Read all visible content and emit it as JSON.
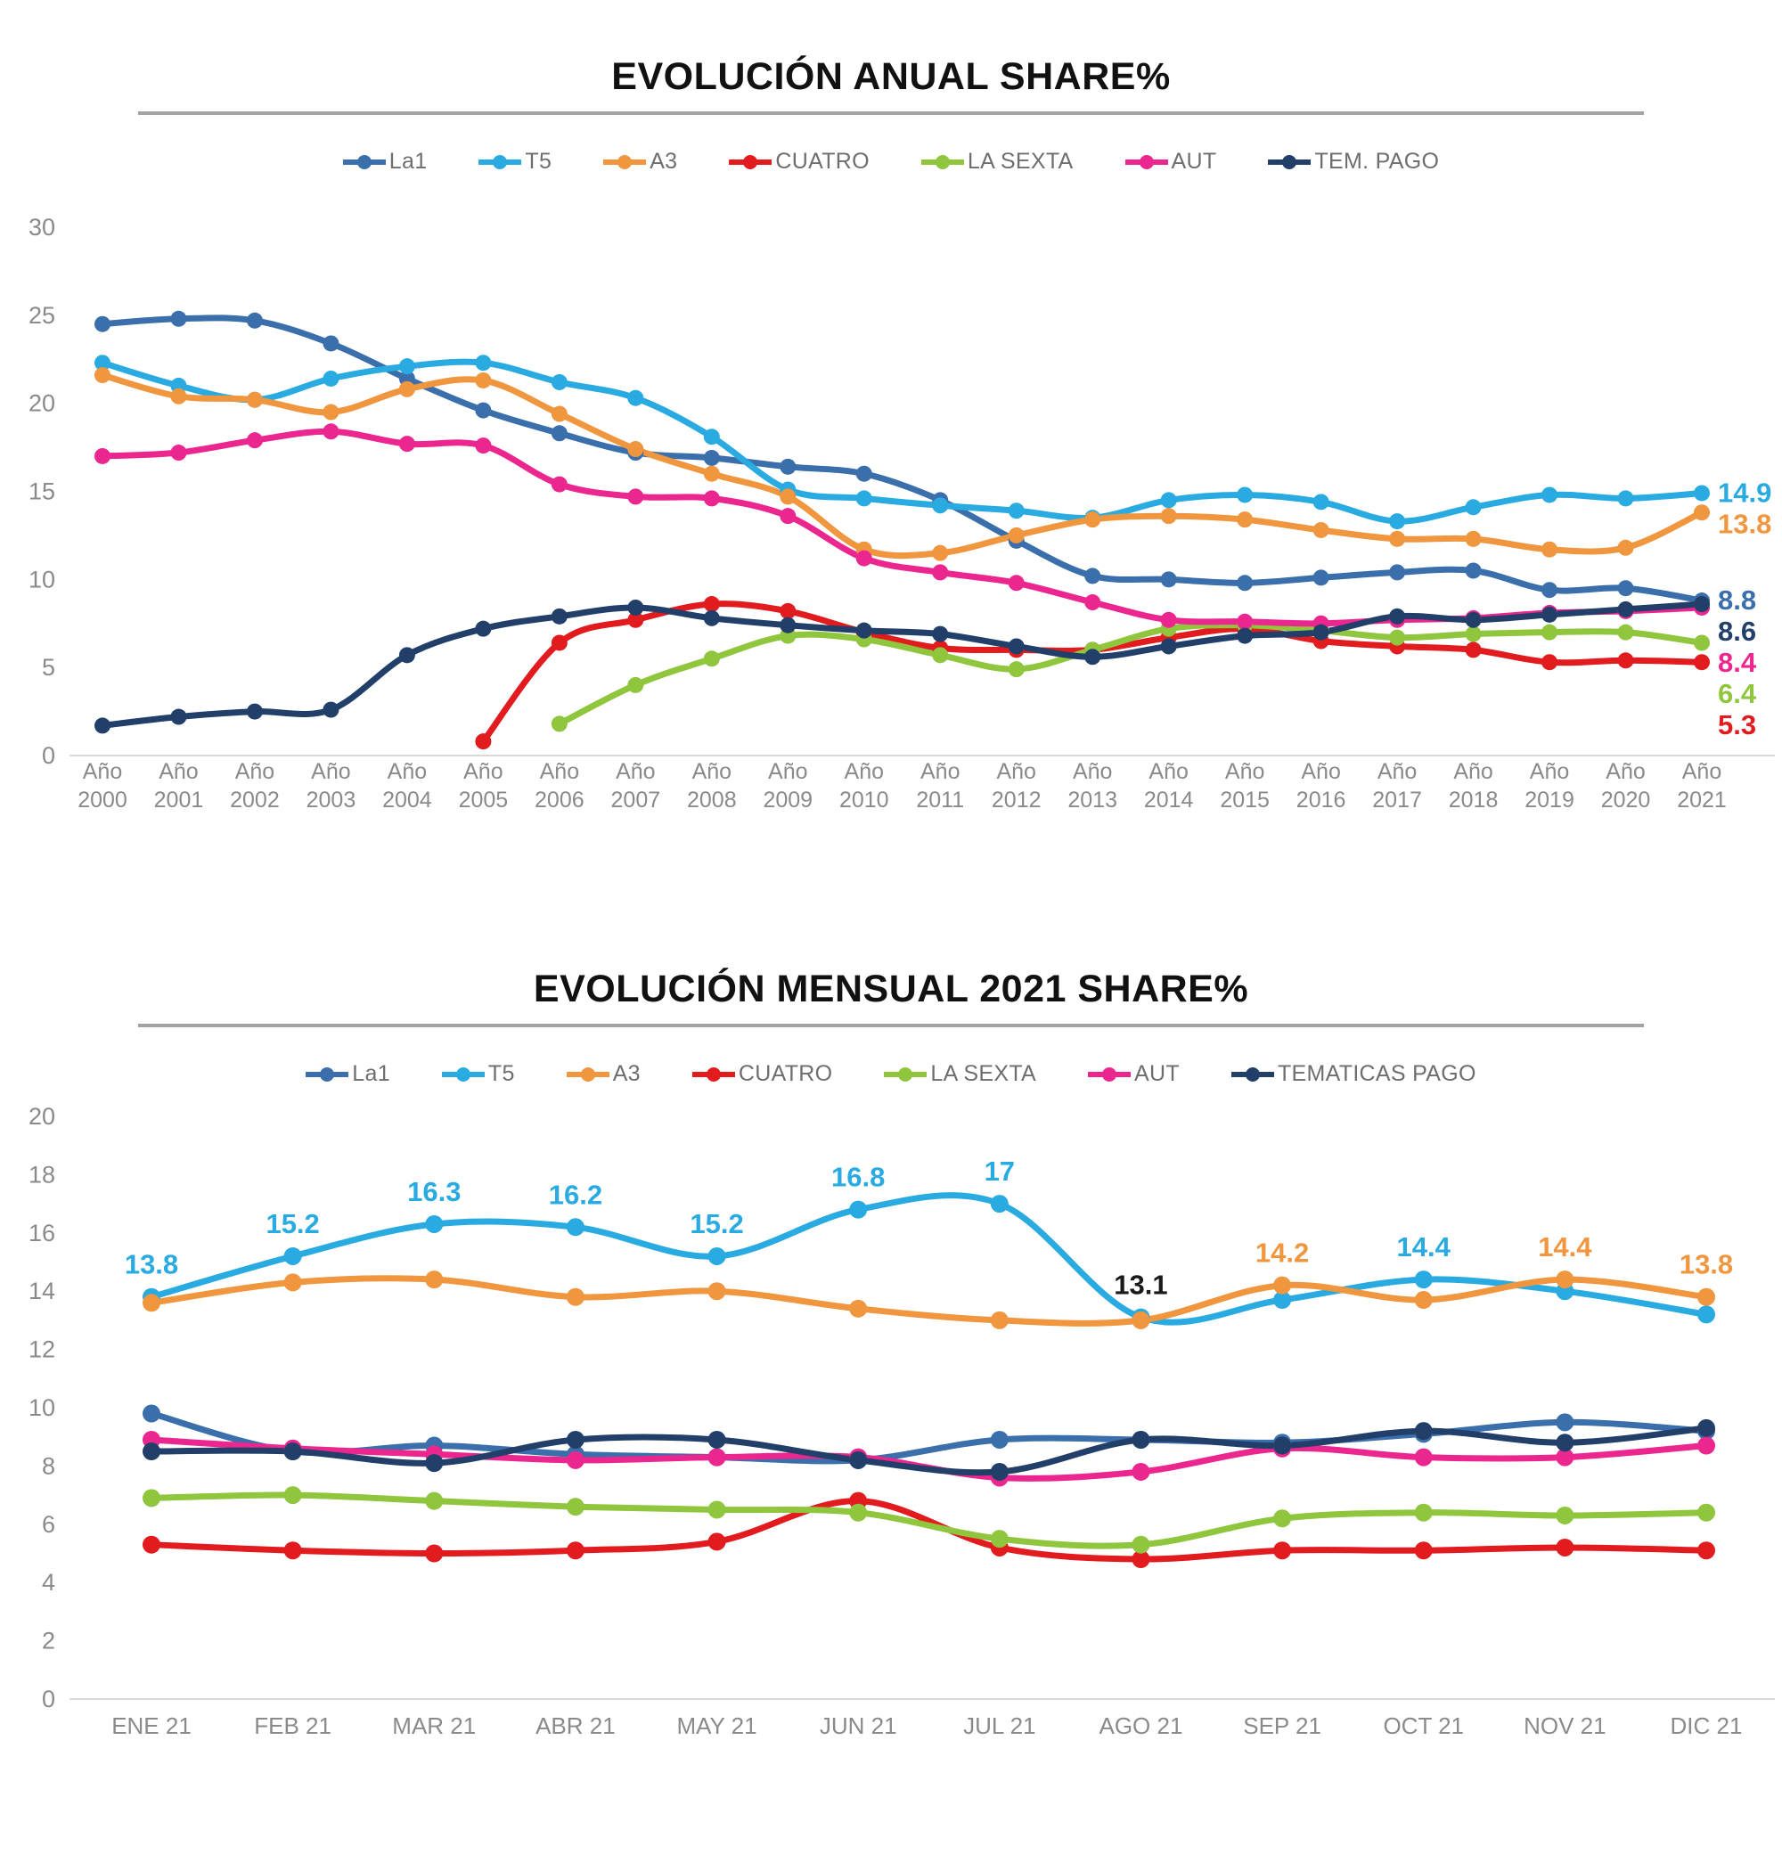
{
  "chart_data": [
    {
      "type": "line",
      "title": "EVOLUCIÓN ANUAL SHARE%",
      "x_prefix": "Año",
      "categories": [
        "2000",
        "2001",
        "2002",
        "2003",
        "2004",
        "2005",
        "2006",
        "2007",
        "2008",
        "2009",
        "2010",
        "2011",
        "2012",
        "2013",
        "2014",
        "2015",
        "2016",
        "2017",
        "2018",
        "2019",
        "2020",
        "2021"
      ],
      "y_axis": {
        "ticks": [
          0,
          5,
          10,
          15,
          20,
          25,
          30
        ],
        "min": 0,
        "max": 30
      },
      "grid": false,
      "legend_position": "top",
      "series": [
        {
          "name": "La1",
          "color": "#3A6FAC",
          "end_label": "8.8",
          "values": [
            24.5,
            24.8,
            24.7,
            23.4,
            21.4,
            19.6,
            18.3,
            17.2,
            16.9,
            16.4,
            16.0,
            14.5,
            12.2,
            10.2,
            10.0,
            9.8,
            10.1,
            10.4,
            10.5,
            9.4,
            9.5,
            8.8
          ]
        },
        {
          "name": "T5",
          "color": "#29ABE2",
          "end_label": "14.9",
          "values": [
            22.3,
            21.0,
            20.2,
            21.4,
            22.1,
            22.3,
            21.2,
            20.3,
            18.1,
            15.1,
            14.6,
            14.2,
            13.9,
            13.5,
            14.5,
            14.8,
            14.4,
            13.3,
            14.1,
            14.8,
            14.6,
            14.9
          ]
        },
        {
          "name": "A3",
          "color": "#F0963F",
          "end_label": "13.8",
          "values": [
            21.6,
            20.4,
            20.2,
            19.5,
            20.8,
            21.3,
            19.4,
            17.4,
            16.0,
            14.7,
            11.7,
            11.5,
            12.5,
            13.4,
            13.6,
            13.4,
            12.8,
            12.3,
            12.3,
            11.7,
            11.8,
            13.8
          ]
        },
        {
          "name": "CUATRO",
          "color": "#E21B1F",
          "end_label": "5.3",
          "values": [
            null,
            null,
            null,
            null,
            null,
            0.8,
            6.4,
            7.7,
            8.6,
            8.2,
            7.0,
            6.1,
            6.0,
            6.0,
            6.7,
            7.2,
            6.5,
            6.2,
            6.0,
            5.3,
            5.4,
            5.3
          ]
        },
        {
          "name": "LA SEXTA",
          "color": "#8FC63D",
          "end_label": "6.4",
          "values": [
            null,
            null,
            null,
            null,
            null,
            null,
            1.8,
            4.0,
            5.5,
            6.8,
            6.6,
            5.7,
            4.9,
            6.0,
            7.2,
            7.4,
            7.1,
            6.7,
            6.9,
            7.0,
            7.0,
            6.4
          ]
        },
        {
          "name": "AUT",
          "color": "#EC268F",
          "end_label": "8.4",
          "values": [
            17.0,
            17.2,
            17.9,
            18.4,
            17.7,
            17.6,
            15.4,
            14.7,
            14.6,
            13.6,
            11.2,
            10.4,
            9.8,
            8.7,
            7.7,
            7.6,
            7.5,
            7.7,
            7.8,
            8.1,
            8.2,
            8.4
          ]
        },
        {
          "name": "TEM. PAGO",
          "color": "#223F6A",
          "end_label": "8.6",
          "values": [
            1.7,
            2.2,
            2.5,
            2.6,
            5.7,
            7.2,
            7.9,
            8.4,
            7.8,
            7.4,
            7.1,
            6.9,
            6.2,
            5.6,
            6.2,
            6.8,
            7.0,
            7.9,
            7.7,
            8.0,
            8.3,
            8.6
          ]
        }
      ],
      "point_labels": []
    },
    {
      "type": "line",
      "title": "EVOLUCIÓN MENSUAL 2021 SHARE%",
      "x_prefix": "",
      "categories": [
        "ENE 21",
        "FEB 21",
        "MAR 21",
        "ABR 21",
        "MAY 21",
        "JUN 21",
        "JUL 21",
        "AGO 21",
        "SEP 21",
        "OCT 21",
        "NOV 21",
        "DIC 21"
      ],
      "y_axis": {
        "ticks": [
          0,
          2,
          4,
          6,
          8,
          10,
          12,
          14,
          16,
          18,
          20
        ],
        "min": 0,
        "max": 20
      },
      "grid": false,
      "legend_position": "top",
      "series": [
        {
          "name": "La1",
          "color": "#3A6FAC",
          "end_label": "",
          "values": [
            9.8,
            8.5,
            8.7,
            8.4,
            8.3,
            8.2,
            8.9,
            8.9,
            8.8,
            9.1,
            9.5,
            9.2
          ]
        },
        {
          "name": "T5",
          "color": "#29ABE2",
          "end_label": "",
          "values": [
            13.8,
            15.2,
            16.3,
            16.2,
            15.2,
            16.8,
            17,
            13.1,
            13.7,
            14.4,
            14.0,
            13.2
          ]
        },
        {
          "name": "A3",
          "color": "#F0963F",
          "end_label": "",
          "values": [
            13.6,
            14.3,
            14.4,
            13.8,
            14.0,
            13.4,
            13.0,
            13.0,
            14.2,
            13.7,
            14.4,
            13.8
          ]
        },
        {
          "name": "CUATRO",
          "color": "#E21B1F",
          "end_label": "",
          "values": [
            5.3,
            5.1,
            5.0,
            5.1,
            5.4,
            6.8,
            5.2,
            4.8,
            5.1,
            5.1,
            5.2,
            5.1
          ]
        },
        {
          "name": "LA SEXTA",
          "color": "#8FC63D",
          "end_label": "",
          "values": [
            6.9,
            7.0,
            6.8,
            6.6,
            6.5,
            6.4,
            5.5,
            5.3,
            6.2,
            6.4,
            6.3,
            6.4
          ]
        },
        {
          "name": "AUT",
          "color": "#EC268F",
          "end_label": "",
          "values": [
            8.9,
            8.6,
            8.4,
            8.2,
            8.3,
            8.3,
            7.6,
            7.8,
            8.6,
            8.3,
            8.3,
            8.7
          ]
        },
        {
          "name": "TEMATICAS PAGO",
          "color": "#223F6A",
          "end_label": "",
          "values": [
            8.5,
            8.5,
            8.1,
            8.9,
            8.9,
            8.2,
            7.8,
            8.9,
            8.7,
            9.2,
            8.8,
            9.3
          ]
        }
      ],
      "point_labels": [
        {
          "series": "T5",
          "index": 0,
          "text": "13.8"
        },
        {
          "series": "T5",
          "index": 1,
          "text": "15.2"
        },
        {
          "series": "T5",
          "index": 2,
          "text": "16.3"
        },
        {
          "series": "T5",
          "index": 3,
          "text": "16.2"
        },
        {
          "series": "T5",
          "index": 4,
          "text": "15.2"
        },
        {
          "series": "T5",
          "index": 5,
          "text": "16.8"
        },
        {
          "series": "T5",
          "index": 6,
          "text": "17"
        },
        {
          "series": "T5",
          "index": 7,
          "text": "13.1",
          "color": "#1a1a1a"
        },
        {
          "series": "T5",
          "index": 9,
          "text": "14.4"
        },
        {
          "series": "A3",
          "index": 8,
          "text": "14.2"
        },
        {
          "series": "A3",
          "index": 10,
          "text": "14.4"
        },
        {
          "series": "A3",
          "index": 11,
          "text": "13.8"
        }
      ]
    }
  ]
}
